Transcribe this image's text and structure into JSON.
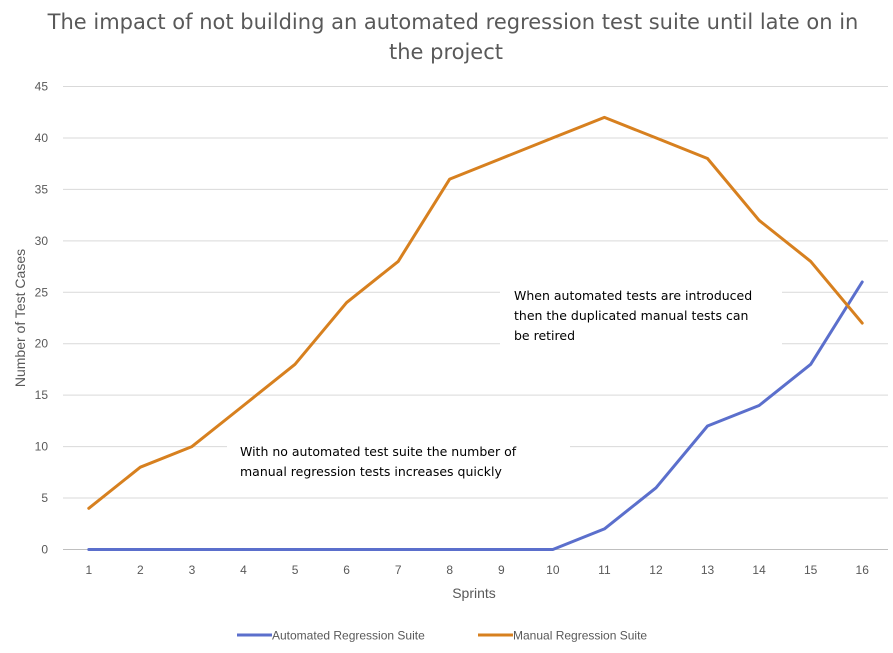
{
  "chart_data": {
    "type": "line",
    "title": "The impact of not building an automated regression test suite until late on in the project",
    "xlabel": "Sprints",
    "ylabel": "Number of Test Cases",
    "categories": [
      "1",
      "2",
      "3",
      "4",
      "5",
      "6",
      "7",
      "8",
      "9",
      "10",
      "11",
      "12",
      "13",
      "14",
      "15",
      "16"
    ],
    "ylim": [
      0,
      45
    ],
    "yticks": [
      0,
      5,
      10,
      15,
      20,
      25,
      30,
      35,
      40,
      45
    ],
    "grid": true,
    "legend_position": "bottom",
    "series": [
      {
        "name": "Automated Regression Suite",
        "color": "#5b6fcc",
        "values": [
          0,
          0,
          0,
          0,
          0,
          0,
          0,
          0,
          0,
          0,
          2,
          6,
          12,
          14,
          18,
          26
        ]
      },
      {
        "name": "Manual Regression Suite",
        "color": "#d7801f",
        "values": [
          4,
          8,
          10,
          14,
          18,
          24,
          28,
          36,
          38,
          40,
          42,
          40,
          38,
          32,
          28,
          22
        ]
      }
    ],
    "annotations": [
      {
        "lines": [
          "With no automated test suite the number of",
          "manual regression tests increases quickly"
        ]
      },
      {
        "lines": [
          "When automated tests are introduced",
          "then the duplicated manual tests can",
          "be retired"
        ]
      }
    ]
  }
}
